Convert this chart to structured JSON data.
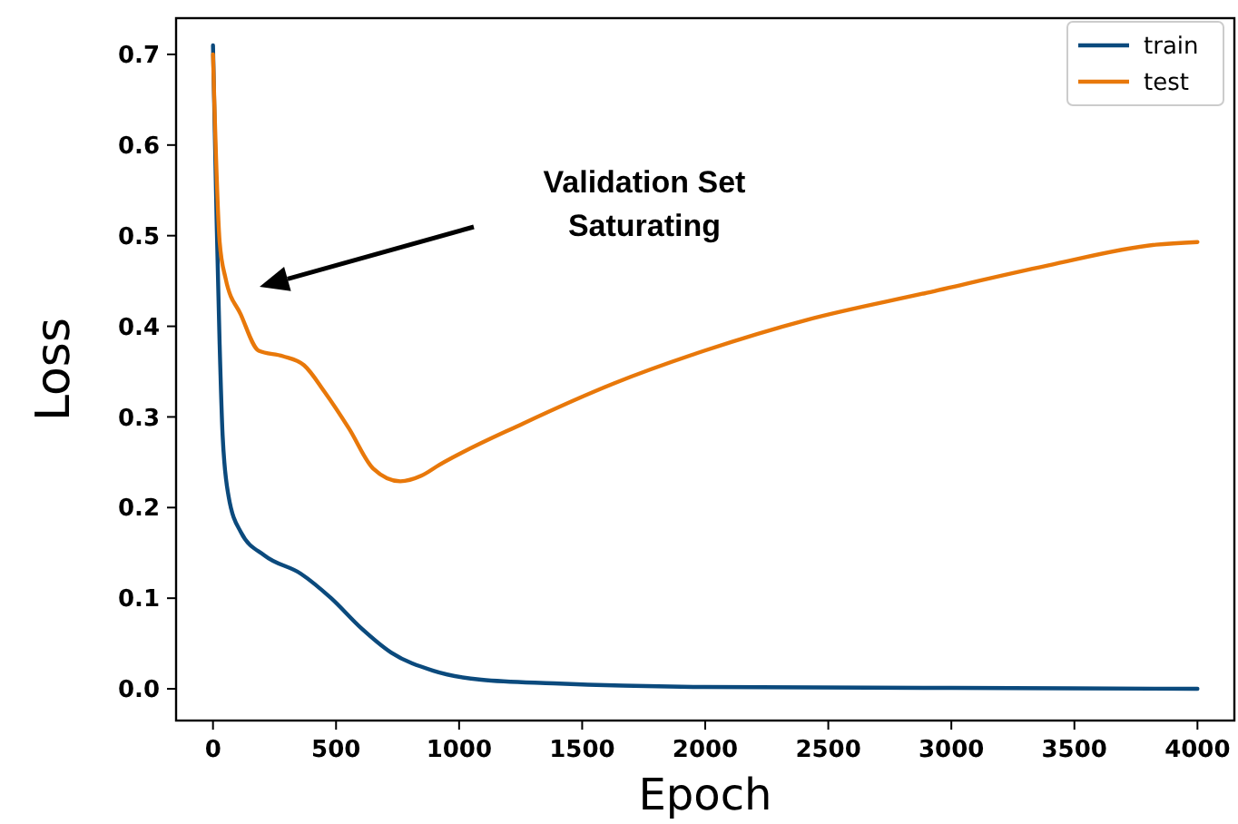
{
  "chart_data": {
    "type": "line",
    "xlabel": "Epoch",
    "ylabel": "Loss",
    "xlim": [
      -150,
      4150
    ],
    "ylim": [
      -0.035,
      0.74
    ],
    "xticks": [
      0,
      500,
      1000,
      1500,
      2000,
      2500,
      3000,
      3500,
      4000
    ],
    "yticks": [
      {
        "value": 0,
        "label": "0.0"
      },
      0.1,
      0.2,
      0.3,
      0.4,
      0.5,
      0.6,
      0.7
    ],
    "grid": false,
    "legend": "top right",
    "marker": "none",
    "line_style": "solid",
    "annotations": [
      "Validation Set\nSaturating"
    ],
    "series": [
      {
        "name": "train",
        "color": "#0b4a7d",
        "x": [
          0,
          15,
          27,
          39,
          63,
          113,
          210,
          357,
          480,
          602,
          724,
          895,
          1090,
          1384,
          1996,
          3000,
          4000
        ],
        "values": [
          0.71,
          0.513,
          0.38,
          0.28,
          0.213,
          0.173,
          0.147,
          0.127,
          0.1,
          0.067,
          0.04,
          0.02,
          0.01,
          0.006,
          0.002,
          0.001,
          0.0
        ]
      },
      {
        "name": "test",
        "color": "#e8780a",
        "x": [
          0,
          27,
          51,
          113,
          186,
          284,
          370,
          455,
          553,
          651,
          761,
          846,
          919,
          1262,
          1629,
          1996,
          2412,
          2901,
          3391,
          3831,
          4000
        ],
        "values": [
          0.7,
          0.493,
          0.453,
          0.413,
          0.373,
          0.367,
          0.357,
          0.327,
          0.287,
          0.243,
          0.229,
          0.235,
          0.247,
          0.293,
          0.337,
          0.373,
          0.407,
          0.437,
          0.467,
          0.49,
          0.493
        ]
      }
    ]
  }
}
